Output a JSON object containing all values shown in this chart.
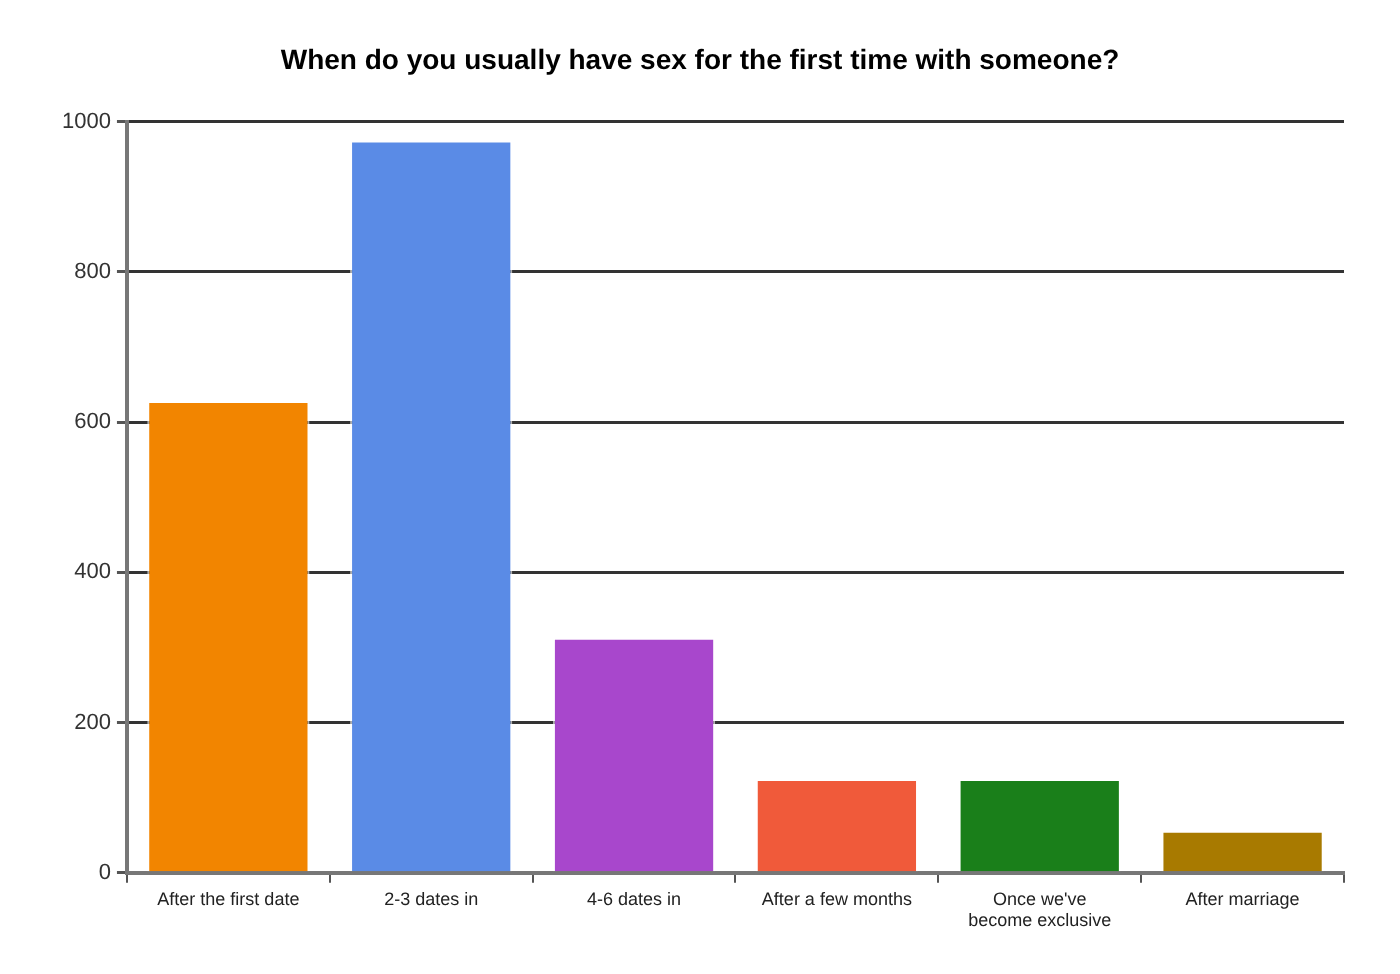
{
  "chart_data": {
    "type": "bar",
    "title": "When do you usually have sex for the first time with someone?",
    "categories": [
      "After the first date",
      "2-3 dates in",
      "4-6 dates in",
      "After a few months",
      "Once we've become exclusive",
      "After marriage"
    ],
    "values": [
      628,
      975,
      313,
      125,
      125,
      56
    ],
    "colors": [
      "#f28500",
      "#5a8be6",
      "#a847cc",
      "#f05a3a",
      "#1a7f1a",
      "#a87a00"
    ],
    "ylim": [
      0,
      1000
    ],
    "yticks": [
      0,
      200,
      400,
      600,
      800,
      1000
    ],
    "grid": "y",
    "legend": false
  }
}
